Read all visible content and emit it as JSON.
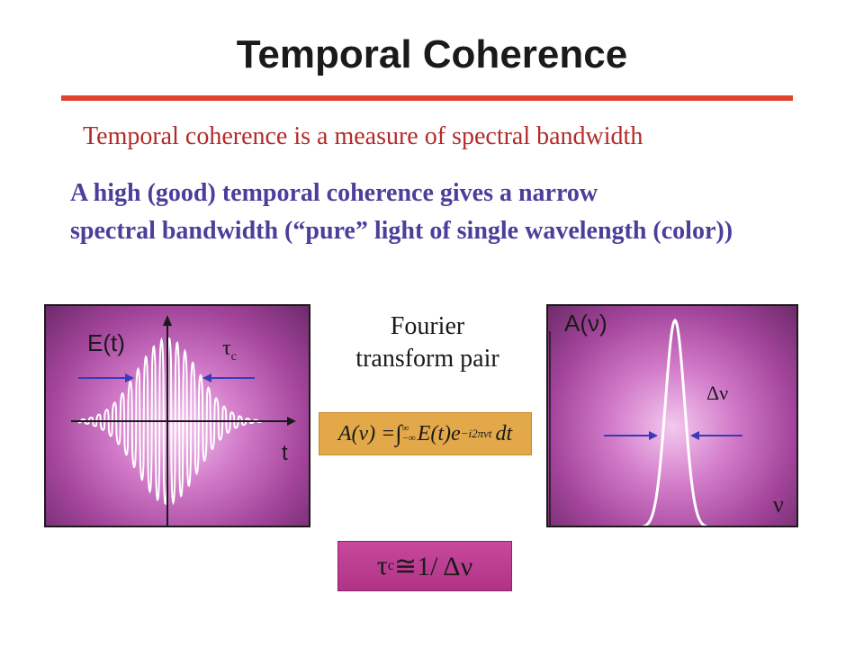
{
  "title": "Temporal Coherence",
  "subtitle": "Temporal coherence is a measure of spectral bandwidth",
  "statement_line1": "A high (good) temporal coherence gives a narrow",
  "statement_line2": "spectral bandwidth (“pure” light of single wavelength (color))",
  "left_panel": {
    "y_label": "E(t)",
    "x_label": "t",
    "width_symbol": "τ",
    "width_subscript": "c"
  },
  "fourier_label_line1": "Fourier",
  "fourier_label_line2": "transform pair",
  "formula": {
    "lhs": "A(ν) = ",
    "integral": "∫",
    "upper_limit": "∞",
    "lower_limit": "−∞",
    "integrand": "E(t)e",
    "exponent": "−i2πνt",
    "differential": "dt"
  },
  "right_panel": {
    "y_label": "A(ν)",
    "x_label": "ν",
    "width_symbol": "Δν"
  },
  "relation": {
    "symbol": "τ",
    "subscript": "c",
    "rest": "≅1/ Δν"
  },
  "colors": {
    "title_rule": "#e0442c",
    "subtitle": "#b42a2a",
    "statement": "#4a3f9a",
    "formula_bg": "#e2a84a",
    "relation_bg": "#c8499c",
    "arrow": "#3a3ab8"
  }
}
